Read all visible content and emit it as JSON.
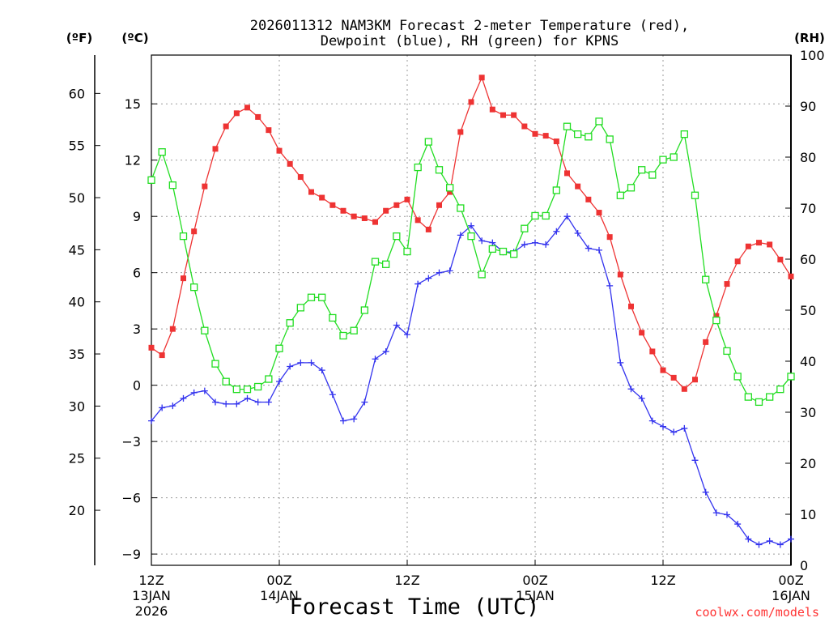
{
  "chart_data": {
    "type": "line",
    "title_line1": "2026011312 NAM3KM Forecast 2-meter Temperature (red),",
    "title_line2": "Dewpoint (blue), RH (green) for KPNS",
    "unit_f": "(ºF)",
    "unit_c": "(ºC)",
    "unit_rh": "(RH)",
    "xlabel": "Forecast Time (UTC)",
    "credit": "coolwx.com/models",
    "x_range_hours": [
      0,
      60
    ],
    "x_ticks": [
      {
        "h": 0,
        "l1": "12Z",
        "l2": "13JAN",
        "l3": "2026"
      },
      {
        "h": 12,
        "l1": "00Z",
        "l2": "14JAN",
        "l3": ""
      },
      {
        "h": 24,
        "l1": "12Z",
        "l2": "",
        "l3": ""
      },
      {
        "h": 36,
        "l1": "00Z",
        "l2": "15JAN",
        "l3": ""
      },
      {
        "h": 48,
        "l1": "12Z",
        "l2": "",
        "l3": ""
      },
      {
        "h": 60,
        "l1": "00Z",
        "l2": "16JAN",
        "l3": ""
      }
    ],
    "c_axis": {
      "min": -9.6,
      "max": 17.6,
      "ticks": [
        -9,
        -6,
        -3,
        0,
        3,
        6,
        9,
        12,
        15
      ],
      "tick_labels": [
        "−9",
        "−6",
        "−3",
        "0",
        "3",
        "6",
        "9",
        "12",
        "15"
      ]
    },
    "f_axis": {
      "ticks": [
        20,
        25,
        30,
        35,
        40,
        45,
        50,
        55,
        60
      ],
      "tick_labels": [
        "20",
        "25",
        "30",
        "35",
        "40",
        "45",
        "50",
        "55",
        "60"
      ]
    },
    "rh_axis": {
      "min": 0,
      "max": 100,
      "ticks": [
        0,
        10,
        20,
        30,
        40,
        50,
        60,
        70,
        80,
        90,
        100
      ],
      "tick_labels": [
        "0",
        "10",
        "20",
        "30",
        "40",
        "50",
        "60",
        "70",
        "80",
        "90",
        "100"
      ]
    },
    "series": [
      {
        "name": "2-meter Temperature",
        "units": "C",
        "color": "#ee3333",
        "marker": "filled-square",
        "x": [
          0,
          1,
          2,
          3,
          4,
          5,
          6,
          7,
          8,
          9,
          10,
          11,
          12,
          13,
          14,
          15,
          16,
          17,
          18,
          19,
          20,
          21,
          22,
          23,
          24,
          25,
          26,
          27,
          28,
          29,
          30,
          31,
          32,
          33,
          34,
          35,
          36,
          37,
          38,
          39,
          40,
          41,
          42,
          43,
          44,
          45,
          46,
          47,
          48,
          49,
          50,
          51,
          52,
          53,
          54,
          55,
          56,
          57,
          58,
          59,
          60
        ],
        "values": [
          2.0,
          1.6,
          3.0,
          5.7,
          8.2,
          10.6,
          12.6,
          13.8,
          14.5,
          14.8,
          14.3,
          13.6,
          12.5,
          11.8,
          11.1,
          10.3,
          10.0,
          9.6,
          9.3,
          9.0,
          8.9,
          8.7,
          9.3,
          9.6,
          9.9,
          8.8,
          8.3,
          9.6,
          10.3,
          13.5,
          15.1,
          16.4,
          14.7,
          14.4,
          14.4,
          13.8,
          13.4,
          13.3,
          13.0,
          11.3,
          10.6,
          9.9,
          9.2,
          7.9,
          5.9,
          4.2,
          2.8,
          1.8,
          0.8,
          0.4,
          -0.2,
          0.3,
          2.3,
          3.7,
          5.4,
          6.6,
          7.4,
          7.6,
          7.5,
          6.7,
          5.8
        ]
      },
      {
        "name": "Dewpoint",
        "units": "C",
        "color": "#3333ee",
        "marker": "plus",
        "x": [
          0,
          1,
          2,
          3,
          4,
          5,
          6,
          7,
          8,
          9,
          10,
          11,
          12,
          13,
          14,
          15,
          16,
          17,
          18,
          19,
          20,
          21,
          22,
          23,
          24,
          25,
          26,
          27,
          28,
          29,
          30,
          31,
          32,
          33,
          34,
          35,
          36,
          37,
          38,
          39,
          40,
          41,
          42,
          43,
          44,
          45,
          46,
          47,
          48,
          49,
          50,
          51,
          52,
          53,
          54,
          55,
          56,
          57,
          58,
          59,
          60
        ],
        "values": [
          -1.9,
          -1.2,
          -1.1,
          -0.7,
          -0.4,
          -0.3,
          -0.9,
          -1.0,
          -1.0,
          -0.7,
          -0.9,
          -0.9,
          0.2,
          1.0,
          1.2,
          1.2,
          0.8,
          -0.5,
          -1.9,
          -1.8,
          -0.9,
          1.4,
          1.8,
          3.2,
          2.7,
          5.4,
          5.7,
          6.0,
          6.1,
          8.0,
          8.5,
          7.7,
          7.6,
          7.1,
          7.1,
          7.5,
          7.6,
          7.5,
          8.2,
          9.0,
          8.1,
          7.3,
          7.2,
          5.3,
          1.2,
          -0.2,
          -0.7,
          -1.9,
          -2.2,
          -2.5,
          -2.3,
          -4.0,
          -5.7,
          -6.8,
          -6.9,
          -7.4,
          -8.2,
          -8.5,
          -8.3,
          -8.5,
          -8.2
        ]
      },
      {
        "name": "RH",
        "units": "%",
        "color": "#22dd22",
        "marker": "open-square",
        "x": [
          0,
          1,
          2,
          3,
          4,
          5,
          6,
          7,
          8,
          9,
          10,
          11,
          12,
          13,
          14,
          15,
          16,
          17,
          18,
          19,
          20,
          21,
          22,
          23,
          24,
          25,
          26,
          27,
          28,
          29,
          30,
          31,
          32,
          33,
          34,
          35,
          36,
          37,
          38,
          39,
          40,
          41,
          42,
          43,
          44,
          45,
          46,
          47,
          48,
          49,
          50,
          51,
          52,
          53,
          54,
          55,
          56,
          57,
          58,
          59,
          60
        ],
        "values": [
          75.5,
          81.0,
          74.5,
          64.5,
          54.5,
          46.0,
          39.5,
          36.0,
          34.5,
          34.5,
          35.0,
          36.5,
          42.5,
          47.5,
          50.5,
          52.5,
          52.5,
          48.5,
          45.0,
          46.0,
          50.0,
          59.5,
          59.0,
          64.5,
          61.5,
          78.0,
          83.0,
          77.5,
          74.0,
          70.0,
          64.5,
          57.0,
          62.0,
          61.5,
          61.0,
          66.0,
          68.5,
          68.5,
          73.5,
          86.0,
          84.5,
          84.0,
          87.0,
          83.5,
          72.5,
          74.0,
          77.5,
          76.5,
          79.5,
          80.0,
          84.5,
          72.5,
          56.0,
          48.0,
          42.0,
          37.0,
          33.0,
          32.0,
          33.0,
          34.5,
          37.0
        ]
      }
    ]
  }
}
